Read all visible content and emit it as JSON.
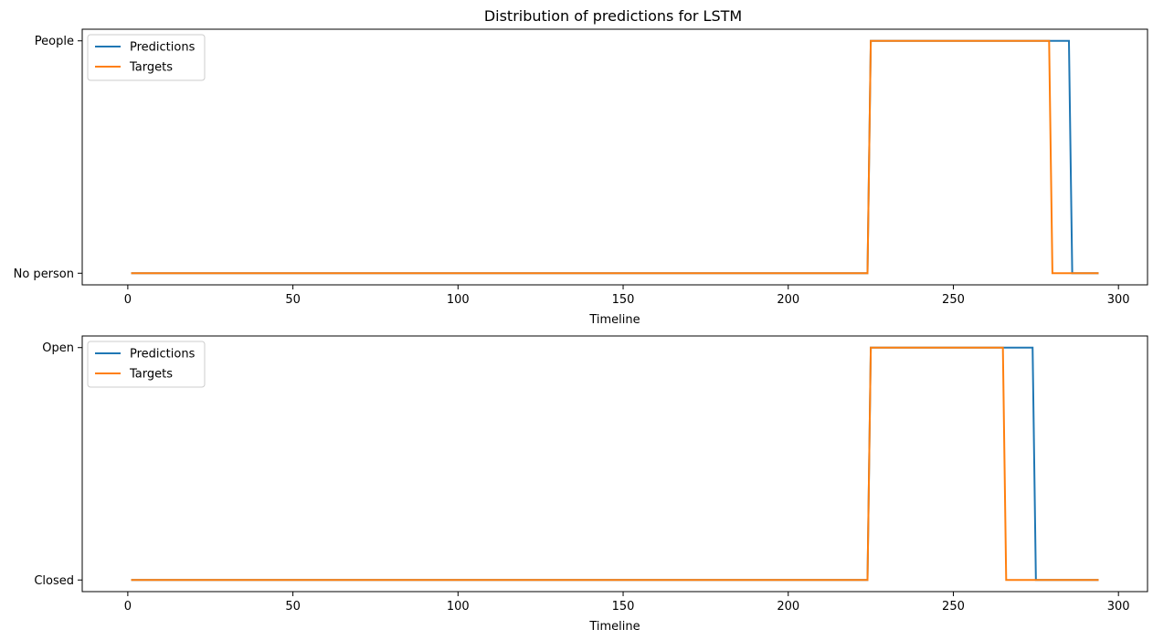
{
  "figure": {
    "title": "Distribution of predictions for LSTM"
  },
  "chart_data": [
    {
      "type": "line",
      "title": "Distribution of predictions for LSTM",
      "xlabel": "Timeline",
      "ylabel": "",
      "xlim": [
        -13.8,
        308.8
      ],
      "ylim": [
        -0.05,
        1.05
      ],
      "x_ticks": [
        0,
        50,
        100,
        150,
        200,
        250,
        300
      ],
      "y_ticks": [
        {
          "value": 0,
          "label": "No person"
        },
        {
          "value": 1,
          "label": "People"
        }
      ],
      "grid": false,
      "legend": "upper-left",
      "series": [
        {
          "name": "Predictions",
          "color": "#1f77b4",
          "x": [
            1,
            224,
            225,
            285,
            286,
            294
          ],
          "y": [
            0,
            0,
            1,
            1,
            0,
            0
          ]
        },
        {
          "name": "Targets",
          "color": "#ff7f0e",
          "x": [
            1,
            224,
            225,
            279,
            280,
            294
          ],
          "y": [
            0,
            0,
            1,
            1,
            0,
            0
          ]
        }
      ]
    },
    {
      "type": "line",
      "title": "",
      "xlabel": "Timeline",
      "ylabel": "",
      "xlim": [
        -13.8,
        308.8
      ],
      "ylim": [
        -0.05,
        1.05
      ],
      "x_ticks": [
        0,
        50,
        100,
        150,
        200,
        250,
        300
      ],
      "y_ticks": [
        {
          "value": 0,
          "label": "Closed"
        },
        {
          "value": 1,
          "label": "Open"
        }
      ],
      "grid": false,
      "legend": "upper-left",
      "series": [
        {
          "name": "Predictions",
          "color": "#1f77b4",
          "x": [
            1,
            224,
            225,
            274,
            275,
            294
          ],
          "y": [
            0,
            0,
            1,
            1,
            0,
            0
          ]
        },
        {
          "name": "Targets",
          "color": "#ff7f0e",
          "x": [
            1,
            224,
            225,
            265,
            266,
            294
          ],
          "y": [
            0,
            0,
            1,
            1,
            0,
            0
          ]
        }
      ]
    }
  ]
}
